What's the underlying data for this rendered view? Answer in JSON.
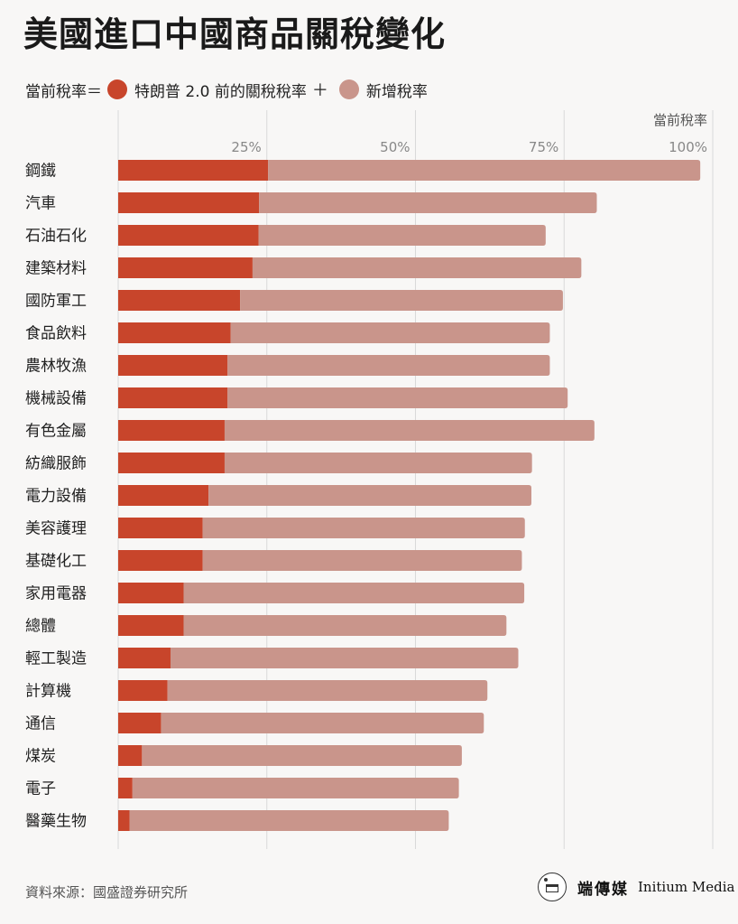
{
  "title": "美國進口中國商品關稅變化",
  "legend": {
    "prefix": "當前稅率＝",
    "items": [
      {
        "label": "特朗普 2.0 前的關稅稅率",
        "color": "#c8452b"
      },
      {
        "label": "新增稅率",
        "color": "#c9958b"
      }
    ],
    "plus": "＋"
  },
  "footer": {
    "source": "資料來源：國盛證券研究所",
    "brand_cn": "端傳媒",
    "brand_en": "Initium Media"
  },
  "chart_data": {
    "type": "bar",
    "orientation": "horizontal",
    "stacked": true,
    "axis_title": "當前稅率",
    "xlim": [
      0,
      100
    ],
    "ticks": [
      25,
      50,
      75,
      100
    ],
    "tick_labels": [
      "25%",
      "50%",
      "75%",
      "100%"
    ],
    "grid": true,
    "categories": [
      "鋼鐵",
      "汽車",
      "石油石化",
      "建築材料",
      "國防軍工",
      "食品飲料",
      "農林牧漁",
      "機械設備",
      "有色金屬",
      "紡織服飾",
      "電力設備",
      "美容護理",
      "基礎化工",
      "家用電器",
      "總體",
      "輕工製造",
      "計算機",
      "通信",
      "煤炭",
      "電子",
      "醫藥生物"
    ],
    "series": [
      {
        "name": "特朗普 2.0 前的關稅稅率",
        "color": "#c8452b",
        "values": [
          25.2,
          23.7,
          23.6,
          22.6,
          20.5,
          18.9,
          18.4,
          18.4,
          17.9,
          17.9,
          15.2,
          14.2,
          14.2,
          11.0,
          11.0,
          8.8,
          8.3,
          7.2,
          4.0,
          2.4,
          1.9
        ]
      },
      {
        "name": "新增稅率",
        "color": "#c9958b",
        "values": [
          72.7,
          56.8,
          48.3,
          55.3,
          54.3,
          53.7,
          54.2,
          57.2,
          62.2,
          51.7,
          54.3,
          54.2,
          53.7,
          57.3,
          54.3,
          58.5,
          53.8,
          54.3,
          53.8,
          54.9,
          53.7
        ]
      }
    ]
  }
}
